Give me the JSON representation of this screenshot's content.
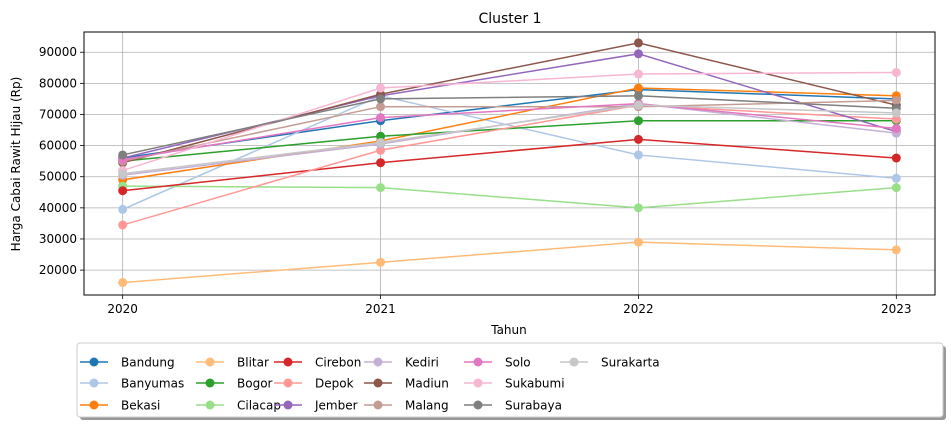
{
  "chart_data": {
    "type": "line",
    "title": "Cluster 1",
    "xlabel": "Tahun",
    "ylabel": "Harga Cabai Rawit Hijau (Rp)",
    "x": [
      2020,
      2021,
      2022,
      2023
    ],
    "xlim": [
      2019.85,
      2023.15
    ],
    "ylim": [
      12000,
      96500
    ],
    "yticks": [
      20000,
      30000,
      40000,
      50000,
      60000,
      70000,
      80000,
      90000
    ],
    "grid": true,
    "legend_position": "bottom-center",
    "legend_columns": 7,
    "series": [
      {
        "name": "Bandung",
        "color": "#1f77b4",
        "values": [
          56000,
          68000,
          78000,
          75000
        ]
      },
      {
        "name": "Banyumas",
        "color": "#aec7e8",
        "values": [
          39500,
          76000,
          57000,
          49500
        ]
      },
      {
        "name": "Bekasi",
        "color": "#ff7f0e",
        "values": [
          49000,
          61500,
          78500,
          76000
        ]
      },
      {
        "name": "Blitar",
        "color": "#ffbb78",
        "values": [
          16000,
          22500,
          29000,
          26500
        ]
      },
      {
        "name": "Bogor",
        "color": "#2ca02c",
        "values": [
          55000,
          63000,
          68000,
          68000
        ]
      },
      {
        "name": "Cilacap",
        "color": "#98df8a",
        "values": [
          47000,
          46500,
          40000,
          46500
        ]
      },
      {
        "name": "Cirebon",
        "color": "#d62728",
        "values": [
          45500,
          54500,
          62000,
          56000
        ]
      },
      {
        "name": "Depok",
        "color": "#ff9896",
        "values": [
          34500,
          58500,
          73000,
          68500
        ]
      },
      {
        "name": "Jember",
        "color": "#9467bd",
        "values": [
          56000,
          76000,
          89500,
          64500
        ]
      },
      {
        "name": "Kediri",
        "color": "#c5b0d5",
        "values": [
          50500,
          60500,
          73500,
          64000
        ]
      },
      {
        "name": "Madiun",
        "color": "#8c564b",
        "values": [
          54500,
          76500,
          93000,
          73000
        ]
      },
      {
        "name": "Malang",
        "color": "#c49c94",
        "values": [
          55000,
          72500,
          72500,
          74500
        ]
      },
      {
        "name": "Solo",
        "color": "#e377c2",
        "values": [
          55500,
          69000,
          73500,
          65500
        ]
      },
      {
        "name": "Sukabumi",
        "color": "#f7b6d2",
        "values": [
          52000,
          78500,
          83000,
          83500
        ]
      },
      {
        "name": "Surabaya",
        "color": "#7f7f7f",
        "values": [
          57000,
          75000,
          76000,
          72000
        ]
      },
      {
        "name": "Surakarta",
        "color": "#c7c7c7",
        "values": [
          51000,
          61000,
          73000,
          70500
        ]
      }
    ]
  }
}
